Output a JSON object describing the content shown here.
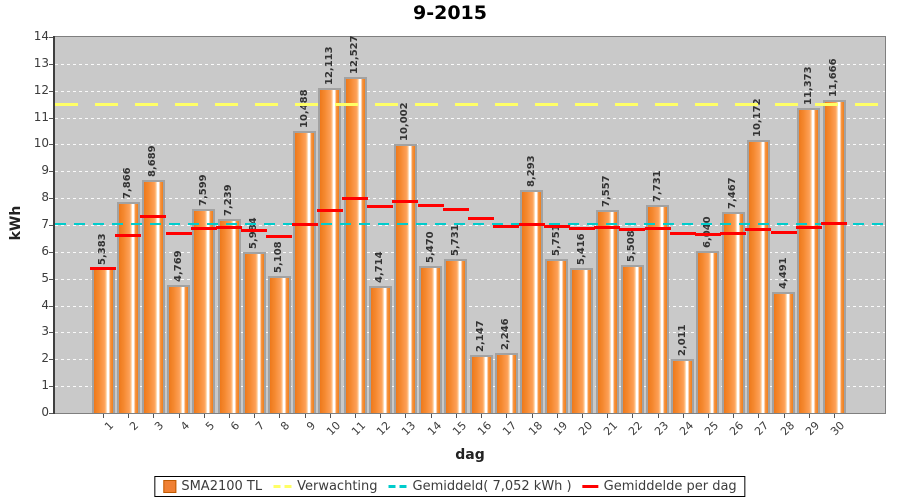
{
  "title": "9-2015",
  "y_axis": {
    "label": "kWh",
    "ticks": [
      "0",
      "1",
      "2",
      "3",
      "4",
      "5",
      "6",
      "7",
      "8",
      "9",
      "10",
      "11",
      "12",
      "13",
      "14"
    ]
  },
  "x_axis": {
    "label": "dag"
  },
  "legend": {
    "items": [
      {
        "name": "SMA2100 TL",
        "swatch": "orange-square"
      },
      {
        "name": "Verwachting",
        "swatch": "yellow-dash"
      },
      {
        "name": "Gemiddeld( 7,052 kWh )",
        "swatch": "cyan-dash"
      },
      {
        "name": "Gemiddelde per dag",
        "swatch": "red-dash"
      }
    ]
  },
  "colors": {
    "plot_background": "#c9c9c9",
    "gridline": "#ffffff",
    "bar_dark": "#ed791c",
    "bar_mid": "#fda057",
    "bar_light": "#fec78f",
    "bar_highlight": "#ffffff",
    "bar_border": "#a2a2a2",
    "expected_line": "#ffff66",
    "average_line": "#00cccc",
    "daily_average": "#ff0000"
  },
  "chart_data": {
    "type": "bar",
    "title": "9-2015",
    "xlabel": "dag",
    "ylabel": "kWh",
    "ylim": [
      0,
      14
    ],
    "grid": true,
    "legend_position": "bottom",
    "categories": [
      "1",
      "2",
      "3",
      "4",
      "5",
      "6",
      "7",
      "8",
      "9",
      "10",
      "11",
      "12",
      "13",
      "14",
      "15",
      "16",
      "17",
      "18",
      "19",
      "20",
      "21",
      "22",
      "23",
      "24",
      "25",
      "26",
      "27",
      "28",
      "29",
      "30"
    ],
    "values": [
      5.383,
      7.866,
      8.689,
      4.769,
      7.599,
      7.239,
      5.984,
      5.108,
      10.488,
      12.113,
      12.527,
      4.714,
      10.002,
      5.47,
      5.731,
      2.147,
      2.246,
      8.293,
      5.751,
      5.416,
      7.557,
      5.508,
      7.731,
      2.011,
      6.04,
      7.467,
      10.172,
      4.491,
      11.373,
      11.666
    ],
    "value_labels": [
      "5,383",
      "7,866",
      "8,689",
      "4,769",
      "7,599",
      "7,239",
      "5,984",
      "5,108",
      "10,488",
      "12,113",
      "12,527",
      "4,714",
      "10,002",
      "5,470",
      "5,731",
      "2,147",
      "2,246",
      "8,293",
      "5,751",
      "5,416",
      "7,557",
      "5,508",
      "7,731",
      "2,011",
      "6,040",
      "7,467",
      "10,172",
      "4,491",
      "11,373",
      "11,666"
    ],
    "series_name": "SMA2100 TL",
    "expected_line": 11.5,
    "expected_name": "Verwachting",
    "average_line": 7.052,
    "average_name": "Gemiddeld( 7,052 kWh )",
    "running_average": [
      5.383,
      6.625,
      7.313,
      6.677,
      6.861,
      6.924,
      6.79,
      6.58,
      7.014,
      7.524,
      7.979,
      7.707,
      7.883,
      7.711,
      7.579,
      7.239,
      6.946,
      7.02,
      6.954,
      6.877,
      6.909,
      6.845,
      6.884,
      6.681,
      6.655,
      6.687,
      6.816,
      6.733,
      6.893,
      7.052
    ],
    "running_average_name": "Gemiddelde per dag"
  }
}
